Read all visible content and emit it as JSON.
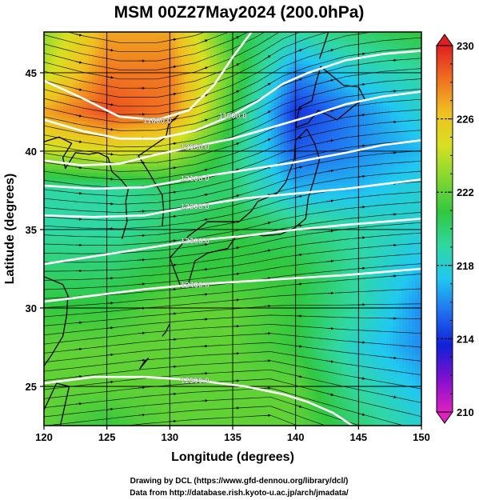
{
  "chart_data": {
    "type": "heatmap",
    "title": "MSM 00Z27May2024 (200.0hPa)",
    "xlabel": "Longitude (degrees)",
    "ylabel": "Latitude  (degrees)",
    "xlim": [
      120,
      150
    ],
    "ylim": [
      22.5,
      47.6
    ],
    "xticks": [
      120,
      125,
      130,
      135,
      140,
      145,
      150
    ],
    "yticks": [
      25,
      30,
      35,
      40,
      45
    ],
    "grid": true,
    "colorbar": {
      "min": 210,
      "max": 230,
      "ticks": [
        210,
        214,
        218,
        222,
        226,
        230
      ],
      "colors": [
        "#e020c0",
        "#8010d0",
        "#1020d8",
        "#2070f0",
        "#20c8f0",
        "#30d8a0",
        "#30c840",
        "#80d830",
        "#d8e020",
        "#f0c020",
        "#f07020",
        "#e02020"
      ]
    },
    "temperature_field": {
      "lon": [
        120,
        125,
        130,
        135,
        140,
        145,
        150
      ],
      "lat": [
        47.5,
        45,
        42.5,
        40,
        37.5,
        35,
        32.5,
        30,
        27.5,
        25,
        22.5
      ],
      "values": [
        [
          223,
          227,
          227,
          221,
          219,
          220,
          221
        ],
        [
          224,
          228,
          228,
          222,
          216,
          218,
          219
        ],
        [
          227,
          229,
          228,
          221,
          214,
          216,
          218
        ],
        [
          224,
          225,
          224,
          220,
          215,
          216,
          217
        ],
        [
          219,
          219,
          220,
          220,
          217,
          217,
          218
        ],
        [
          219,
          219,
          220,
          221,
          220,
          219,
          218
        ],
        [
          220,
          220,
          221,
          221,
          221,
          219,
          217
        ],
        [
          221,
          221,
          222,
          222,
          221,
          219,
          216
        ],
        [
          222,
          222,
          222,
          222,
          221,
          218,
          216
        ],
        [
          222,
          222,
          222,
          222,
          222,
          219,
          217
        ],
        [
          222,
          221,
          222,
          222,
          222,
          220,
          218
        ]
      ]
    },
    "height_contours": [
      {
        "label": "11800.0",
        "points": [
          [
            120,
            44.5
          ],
          [
            123,
            43.4
          ],
          [
            126,
            42.2
          ],
          [
            129,
            42.0
          ],
          [
            131.5,
            42.6
          ],
          [
            133.5,
            44.2
          ],
          [
            135,
            46.0
          ],
          [
            136.5,
            47.6
          ]
        ]
      },
      {
        "label": "11900.0",
        "points": [
          [
            120,
            42.0
          ],
          [
            123,
            41.3
          ],
          [
            126,
            40.8
          ],
          [
            129,
            40.8
          ],
          [
            132,
            41.3
          ],
          [
            135,
            42.3
          ],
          [
            137,
            43.2
          ],
          [
            139,
            44.3
          ],
          [
            141,
            45.0
          ],
          [
            144,
            45.8
          ],
          [
            147,
            46.2
          ],
          [
            150,
            46.4
          ]
        ]
      },
      {
        "label": "12000.0",
        "points": [
          [
            120,
            39.4
          ],
          [
            123,
            39.1
          ],
          [
            126,
            39.2
          ],
          [
            129,
            39.8
          ],
          [
            132,
            40.3
          ],
          [
            135,
            40.8
          ],
          [
            138,
            41.5
          ],
          [
            141,
            42.2
          ],
          [
            144,
            43.0
          ],
          [
            147,
            43.5
          ],
          [
            150,
            43.8
          ]
        ]
      },
      {
        "label": "12100.0",
        "points": [
          [
            120,
            37.8
          ],
          [
            124,
            37.6
          ],
          [
            128,
            37.7
          ],
          [
            132,
            38.3
          ],
          [
            136,
            38.8
          ],
          [
            140,
            39.3
          ],
          [
            144,
            39.9
          ],
          [
            147,
            40.4
          ],
          [
            150,
            40.7
          ]
        ]
      },
      {
        "label": "12200.0",
        "points": [
          [
            120,
            35.9
          ],
          [
            124,
            35.8
          ],
          [
            128,
            35.9
          ],
          [
            132,
            36.5
          ],
          [
            136,
            37.0
          ],
          [
            140,
            37.3
          ],
          [
            144,
            37.6
          ],
          [
            147,
            37.9
          ],
          [
            150,
            38.2
          ]
        ]
      },
      {
        "label": "12300.0",
        "points": [
          [
            120,
            32.8
          ],
          [
            124,
            33.3
          ],
          [
            128,
            33.8
          ],
          [
            132,
            34.3
          ],
          [
            136,
            34.6
          ],
          [
            140,
            35.0
          ],
          [
            144,
            35.3
          ],
          [
            147,
            35.5
          ],
          [
            150,
            35.7
          ]
        ]
      },
      {
        "label": "12400.0",
        "points": [
          [
            120,
            30.4
          ],
          [
            124,
            30.8
          ],
          [
            128,
            31.2
          ],
          [
            132,
            31.5
          ],
          [
            136,
            31.7
          ],
          [
            140,
            31.9
          ],
          [
            144,
            32.1
          ],
          [
            147,
            32.3
          ],
          [
            150,
            32.5
          ]
        ]
      },
      {
        "label": "12500.0",
        "points": [
          [
            120,
            25.2
          ],
          [
            124,
            25.6
          ],
          [
            128,
            25.6
          ],
          [
            132,
            25.4
          ],
          [
            136,
            25.0
          ],
          [
            139,
            24.5
          ],
          [
            141,
            24.0
          ],
          [
            143,
            23.3
          ],
          [
            144.5,
            22.5
          ]
        ]
      }
    ]
  },
  "credits": {
    "line1": "Drawing by DCL (https://www.gfd-dennou.org/library/dcl/)",
    "line2": "Data from http://database.rish.kyoto-u.ac.jp/arch/jmadata/"
  }
}
